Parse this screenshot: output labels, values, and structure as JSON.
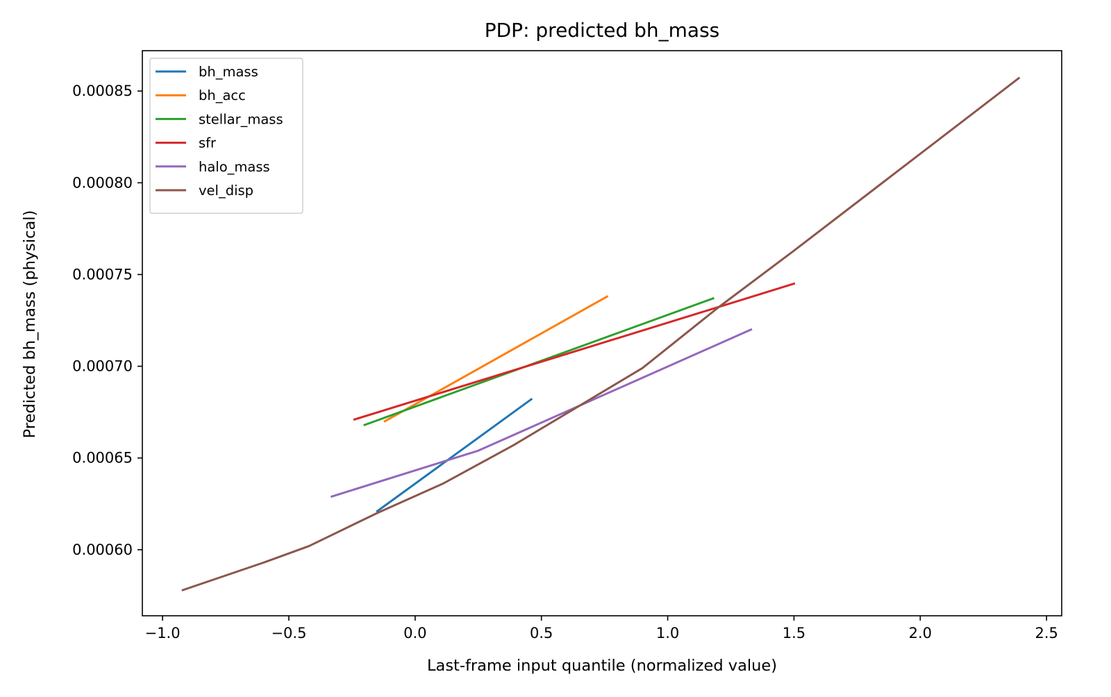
{
  "chart_data": {
    "type": "line",
    "title": "PDP: predicted bh_mass",
    "xlabel": "Last-frame input quantile (normalized value)",
    "ylabel": "Predicted bh_mass (physical)",
    "xlim": [
      -1.08,
      2.56
    ],
    "ylim": [
      0.000564,
      0.000872
    ],
    "xticks": [
      -1.0,
      -0.5,
      0.0,
      0.5,
      1.0,
      1.5,
      2.0,
      2.5
    ],
    "xtick_labels": [
      "−1.0",
      "−0.5",
      "0.0",
      "0.5",
      "1.0",
      "1.5",
      "2.0",
      "2.5"
    ],
    "yticks": [
      0.0006,
      0.00065,
      0.0007,
      0.00075,
      0.0008,
      0.00085
    ],
    "ytick_labels": [
      "0.00060",
      "0.00065",
      "0.00070",
      "0.00075",
      "0.00080",
      "0.00085"
    ],
    "grid": false,
    "legend_position": "upper-left",
    "series": [
      {
        "name": "bh_mass",
        "color": "#1f77b4",
        "x": [
          -0.15,
          0.46
        ],
        "y": [
          0.000621,
          0.000682
        ]
      },
      {
        "name": "bh_acc",
        "color": "#ff7f0e",
        "x": [
          -0.12,
          0.76
        ],
        "y": [
          0.00067,
          0.000738
        ]
      },
      {
        "name": "stellar_mass",
        "color": "#2ca02c",
        "x": [
          -0.2,
          1.18
        ],
        "y": [
          0.000668,
          0.000737
        ]
      },
      {
        "name": "sfr",
        "color": "#d62728",
        "x": [
          -0.24,
          1.5
        ],
        "y": [
          0.000671,
          0.000745
        ]
      },
      {
        "name": "halo_mass",
        "color": "#9467bd",
        "x": [
          -0.33,
          0.25,
          1.33
        ],
        "y": [
          0.000629,
          0.000654,
          0.00072
        ]
      },
      {
        "name": "vel_disp",
        "color": "#8c564b",
        "x": [
          -0.92,
          -0.6,
          -0.42,
          -0.15,
          0.11,
          0.39,
          0.9,
          1.2,
          1.5,
          2.39
        ],
        "y": [
          0.000578,
          0.000593,
          0.000602,
          0.00062,
          0.000636,
          0.000657,
          0.000699,
          0.000732,
          0.000763,
          0.000857
        ]
      }
    ]
  }
}
